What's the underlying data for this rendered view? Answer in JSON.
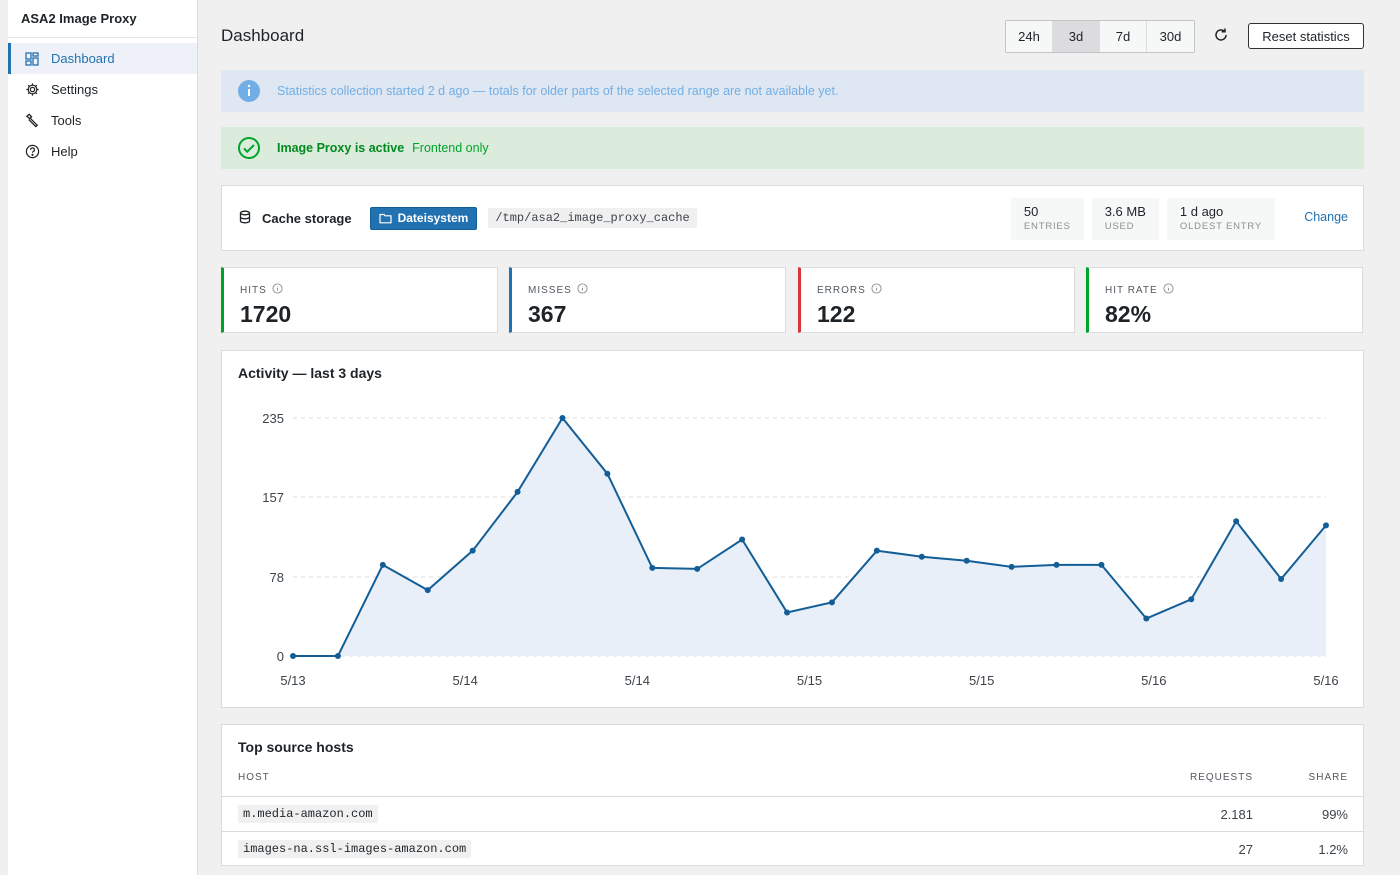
{
  "sidebar": {
    "title": "ASA2 Image Proxy",
    "items": [
      {
        "label": "Dashboard",
        "icon": "dashboard-icon"
      },
      {
        "label": "Settings",
        "icon": "gear-icon"
      },
      {
        "label": "Tools",
        "icon": "wrench-icon"
      },
      {
        "label": "Help",
        "icon": "help-icon"
      }
    ]
  },
  "header": {
    "title": "Dashboard",
    "ranges": [
      "24h",
      "3d",
      "7d",
      "30d"
    ],
    "active_range": "3d",
    "reset_label": "Reset statistics"
  },
  "notices": {
    "info": "Statistics collection started 2 d ago — totals for older parts of the selected range are not available yet.",
    "status_strong": "Image Proxy is active",
    "status_detail": "Frontend only"
  },
  "cache": {
    "label": "Cache storage",
    "backend": "Dateisystem",
    "path": "/tmp/asa2_image_proxy_cache",
    "stats": [
      {
        "value": "50",
        "label": "ENTRIES"
      },
      {
        "value": "3.6 MB",
        "label": "USED"
      },
      {
        "value": "1 d ago",
        "label": "OLDEST ENTRY"
      }
    ],
    "change_label": "Change"
  },
  "stats": [
    {
      "label": "HITS",
      "value": "1720"
    },
    {
      "label": "MISSES",
      "value": "367"
    },
    {
      "label": "ERRORS",
      "value": "122"
    },
    {
      "label": "HIT RATE",
      "value": "82%"
    }
  ],
  "chart_data": {
    "type": "area",
    "title": "Activity — last 3 days",
    "x_ticks": [
      "5/13",
      "5/14",
      "5/14",
      "5/15",
      "5/15",
      "5/16",
      "5/16"
    ],
    "y_ticks": [
      0,
      78,
      157,
      235
    ],
    "ylim": [
      0,
      235
    ],
    "values": [
      0,
      0,
      90,
      65,
      104,
      162,
      235,
      180,
      87,
      86,
      115,
      43,
      53,
      104,
      98,
      94,
      88,
      90,
      90,
      37,
      56,
      133,
      76,
      129
    ],
    "grid": true
  },
  "hosts": {
    "title": "Top source hosts",
    "headers": {
      "host": "HOST",
      "requests": "REQUESTS",
      "share": "SHARE"
    },
    "rows": [
      {
        "host": "m.media-amazon.com",
        "requests": "2.181",
        "share": "99%"
      },
      {
        "host": "images-na.ssl-images-amazon.com",
        "requests": "27",
        "share": "1.2%"
      }
    ]
  },
  "colors": {
    "accent": "#2271b1",
    "hits": "#00a32a",
    "misses": "#2271b1",
    "errors": "#d63638",
    "hit_rate": "#00a32a",
    "line": "#135e96",
    "area": "#e8eff8"
  }
}
